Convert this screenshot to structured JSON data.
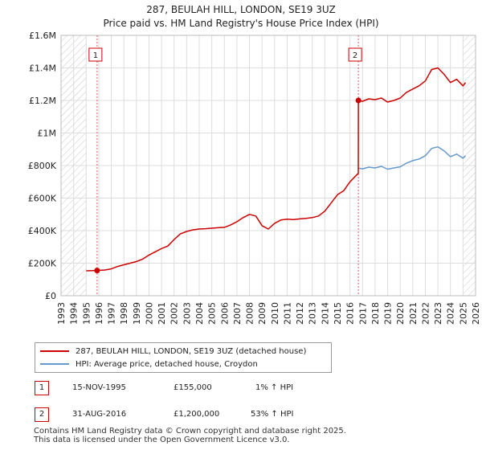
{
  "chart_data": {
    "type": "line",
    "title": "287, BEULAH HILL, LONDON, SE19 3UZ",
    "subtitle": "Price paid vs. HM Land Registry's House Price Index (HPI)",
    "xlim": [
      1993,
      2026
    ],
    "ylim": [
      0,
      1600000
    ],
    "x_ticks": [
      "1993",
      "1994",
      "1995",
      "1996",
      "1997",
      "1998",
      "1999",
      "2000",
      "2001",
      "2002",
      "2003",
      "2004",
      "2005",
      "2006",
      "2007",
      "2008",
      "2009",
      "2010",
      "2011",
      "2012",
      "2013",
      "2014",
      "2015",
      "2016",
      "2017",
      "2018",
      "2019",
      "2020",
      "2021",
      "2022",
      "2023",
      "2024",
      "2025",
      "2026"
    ],
    "y_ticks": [
      {
        "value": 0,
        "label": "£0"
      },
      {
        "value": 200000,
        "label": "£200K"
      },
      {
        "value": 400000,
        "label": "£400K"
      },
      {
        "value": 600000,
        "label": "£600K"
      },
      {
        "value": 800000,
        "label": "£800K"
      },
      {
        "value": 1000000,
        "label": "£1M"
      },
      {
        "value": 1200000,
        "label": "£1.2M"
      },
      {
        "value": 1400000,
        "label": "£1.4M"
      },
      {
        "value": 1600000,
        "label": "£1.6M"
      }
    ],
    "hatched_before": 1995.0,
    "hatched_after": 2025.0,
    "series": [
      {
        "name": "287, BEULAH HILL, LONDON, SE19 3UZ (detached house)",
        "color": "#cc0000",
        "points": [
          [
            1995.0,
            153000
          ],
          [
            1995.87,
            155000
          ],
          [
            1996.5,
            158000
          ],
          [
            1997.0,
            165000
          ],
          [
            1997.5,
            180000
          ],
          [
            1998.0,
            190000
          ],
          [
            1998.5,
            200000
          ],
          [
            1999.0,
            210000
          ],
          [
            1999.5,
            225000
          ],
          [
            2000.0,
            250000
          ],
          [
            2000.5,
            270000
          ],
          [
            2001.0,
            290000
          ],
          [
            2001.5,
            305000
          ],
          [
            2002.0,
            345000
          ],
          [
            2002.5,
            380000
          ],
          [
            2003.0,
            395000
          ],
          [
            2003.5,
            405000
          ],
          [
            2004.0,
            410000
          ],
          [
            2004.5,
            412000
          ],
          [
            2005.0,
            415000
          ],
          [
            2005.5,
            418000
          ],
          [
            2006.0,
            420000
          ],
          [
            2006.5,
            435000
          ],
          [
            2007.0,
            455000
          ],
          [
            2007.5,
            480000
          ],
          [
            2008.0,
            500000
          ],
          [
            2008.5,
            490000
          ],
          [
            2009.0,
            430000
          ],
          [
            2009.5,
            410000
          ],
          [
            2010.0,
            445000
          ],
          [
            2010.5,
            465000
          ],
          [
            2011.0,
            470000
          ],
          [
            2011.5,
            468000
          ],
          [
            2012.0,
            472000
          ],
          [
            2012.5,
            475000
          ],
          [
            2013.0,
            480000
          ],
          [
            2013.5,
            490000
          ],
          [
            2014.0,
            520000
          ],
          [
            2014.5,
            570000
          ],
          [
            2015.0,
            620000
          ],
          [
            2015.5,
            645000
          ],
          [
            2016.0,
            700000
          ],
          [
            2016.5,
            740000
          ],
          [
            2016.66,
            752000
          ],
          [
            2016.67,
            1200000
          ],
          [
            2017.0,
            1195000
          ],
          [
            2017.5,
            1210000
          ],
          [
            2018.0,
            1205000
          ],
          [
            2018.5,
            1215000
          ],
          [
            2019.0,
            1190000
          ],
          [
            2019.5,
            1200000
          ],
          [
            2020.0,
            1215000
          ],
          [
            2020.5,
            1250000
          ],
          [
            2021.0,
            1270000
          ],
          [
            2021.5,
            1290000
          ],
          [
            2022.0,
            1320000
          ],
          [
            2022.5,
            1390000
          ],
          [
            2023.0,
            1400000
          ],
          [
            2023.5,
            1360000
          ],
          [
            2024.0,
            1310000
          ],
          [
            2024.5,
            1330000
          ],
          [
            2025.0,
            1290000
          ],
          [
            2025.2,
            1310000
          ]
        ]
      },
      {
        "name": "HPI: Average price, detached house, Croydon",
        "color": "#6699cc",
        "points": [
          [
            2016.67,
            784000
          ],
          [
            2017.0,
            780000
          ],
          [
            2017.5,
            790000
          ],
          [
            2018.0,
            785000
          ],
          [
            2018.5,
            795000
          ],
          [
            2019.0,
            778000
          ],
          [
            2019.5,
            785000
          ],
          [
            2020.0,
            792000
          ],
          [
            2020.5,
            815000
          ],
          [
            2021.0,
            830000
          ],
          [
            2021.5,
            840000
          ],
          [
            2022.0,
            860000
          ],
          [
            2022.5,
            905000
          ],
          [
            2023.0,
            915000
          ],
          [
            2023.5,
            890000
          ],
          [
            2024.0,
            855000
          ],
          [
            2024.5,
            870000
          ],
          [
            2025.0,
            845000
          ],
          [
            2025.2,
            860000
          ]
        ]
      }
    ],
    "markers": [
      {
        "label": "1",
        "x": 1995.87,
        "y": 155000
      },
      {
        "label": "2",
        "x": 2016.67,
        "y": 1200000
      }
    ]
  },
  "legend": {
    "items": [
      {
        "label": "287, BEULAH HILL, LONDON, SE19 3UZ (detached house)",
        "color": "#cc0000"
      },
      {
        "label": "HPI: Average price, detached house, Croydon",
        "color": "#6699cc"
      }
    ]
  },
  "transactions": [
    {
      "num": "1",
      "date": "15-NOV-1995",
      "price": "£155,000",
      "hpi": "1% ↑ HPI"
    },
    {
      "num": "2",
      "date": "31-AUG-2016",
      "price": "£1,200,000",
      "hpi": "53% ↑ HPI"
    }
  ],
  "footer": {
    "line1": "Contains HM Land Registry data © Crown copyright and database right 2025.",
    "line2": "This data is licensed under the Open Government Licence v3.0."
  }
}
